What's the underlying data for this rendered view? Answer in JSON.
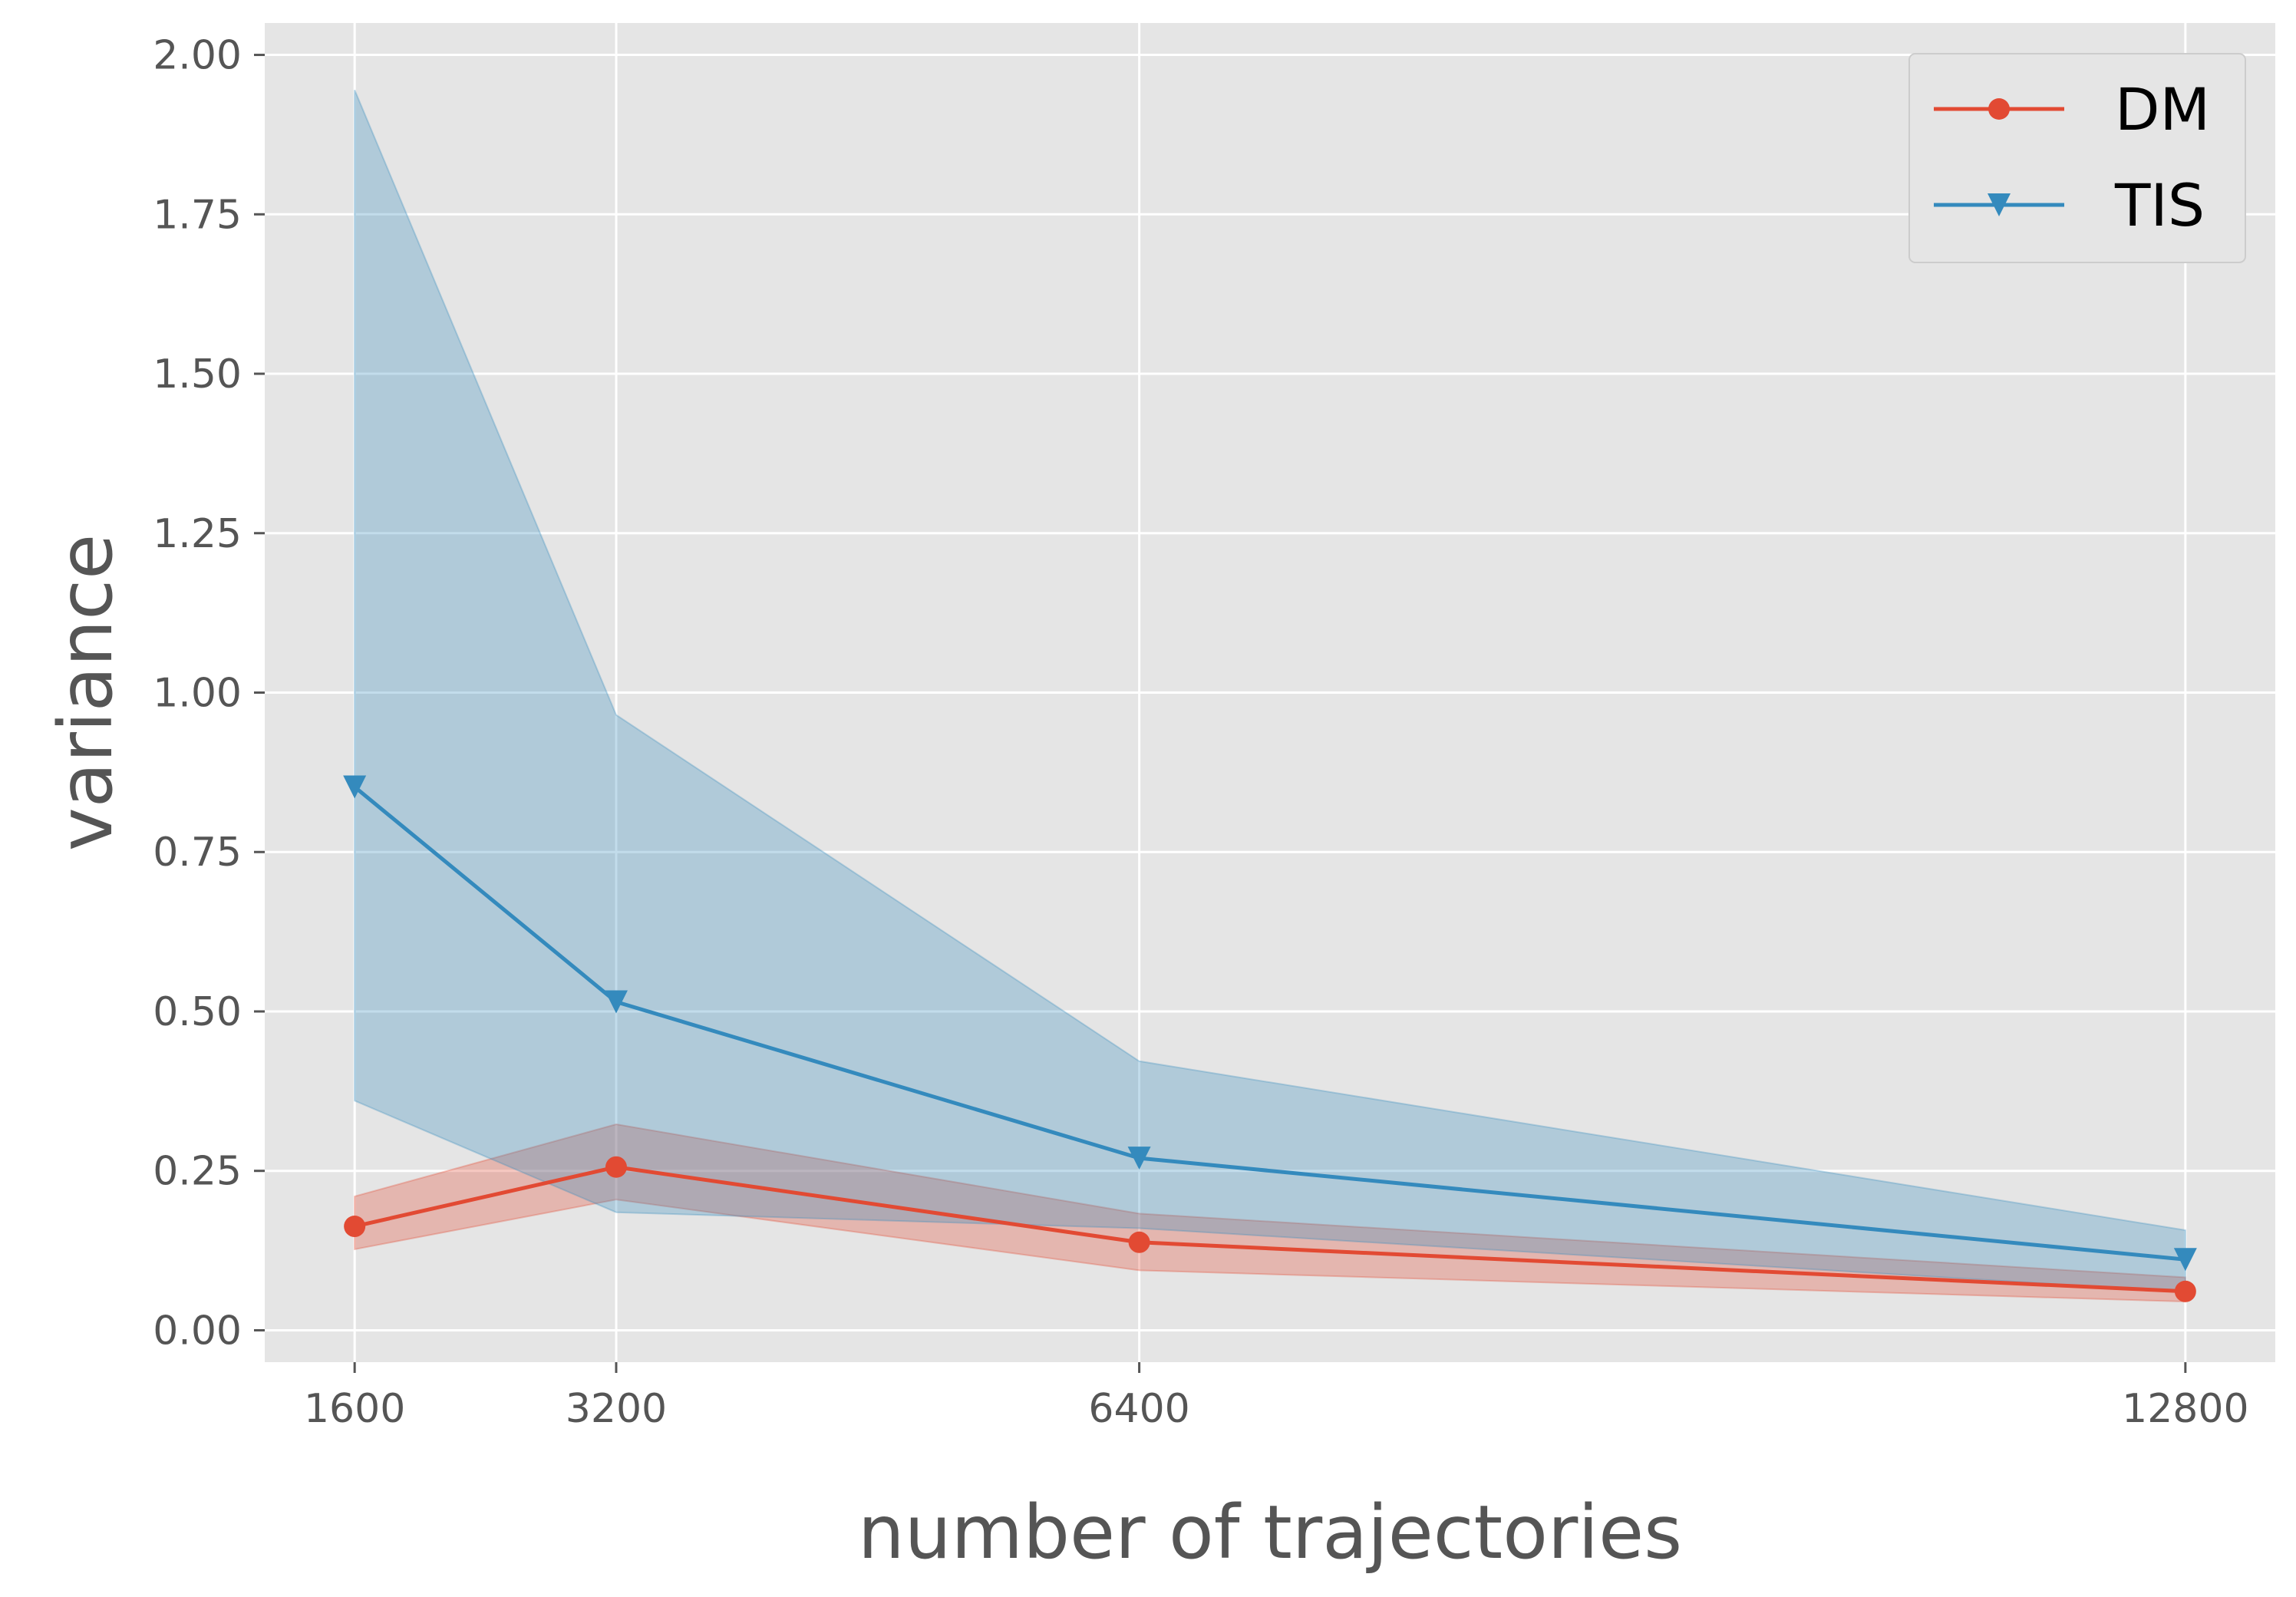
{
  "chart_data": {
    "type": "line",
    "title": "",
    "xlabel": "number of trajectories",
    "ylabel": "variance",
    "x": [
      1600,
      3200,
      6400,
      12800
    ],
    "x_tick_labels": [
      "1600",
      "3200",
      "6400",
      "12800"
    ],
    "xlim": [
      1050,
      13350
    ],
    "ylim": [
      -0.05,
      2.05
    ],
    "y_ticks": [
      0.0,
      0.25,
      0.5,
      0.75,
      1.0,
      1.25,
      1.5,
      1.75,
      2.0
    ],
    "y_tick_labels": [
      "0.00",
      "0.25",
      "0.50",
      "0.75",
      "1.00",
      "1.25",
      "1.50",
      "1.75",
      "2.00"
    ],
    "grid": true,
    "legend_position": "top-right",
    "series": [
      {
        "name": "DM",
        "color": "#E24A33",
        "marker": "circle",
        "values": [
          0.163,
          0.256,
          0.138,
          0.061
        ],
        "band_low": [
          0.127,
          0.205,
          0.094,
          0.045
        ],
        "band_high": [
          0.21,
          0.323,
          0.183,
          0.083
        ]
      },
      {
        "name": "TIS",
        "color": "#348ABD",
        "marker": "triangle-down",
        "values": [
          0.852,
          0.515,
          0.27,
          0.111
        ],
        "band_low": [
          0.36,
          0.185,
          0.16,
          0.06
        ],
        "band_high": [
          1.945,
          0.965,
          0.422,
          0.157
        ]
      }
    ]
  }
}
